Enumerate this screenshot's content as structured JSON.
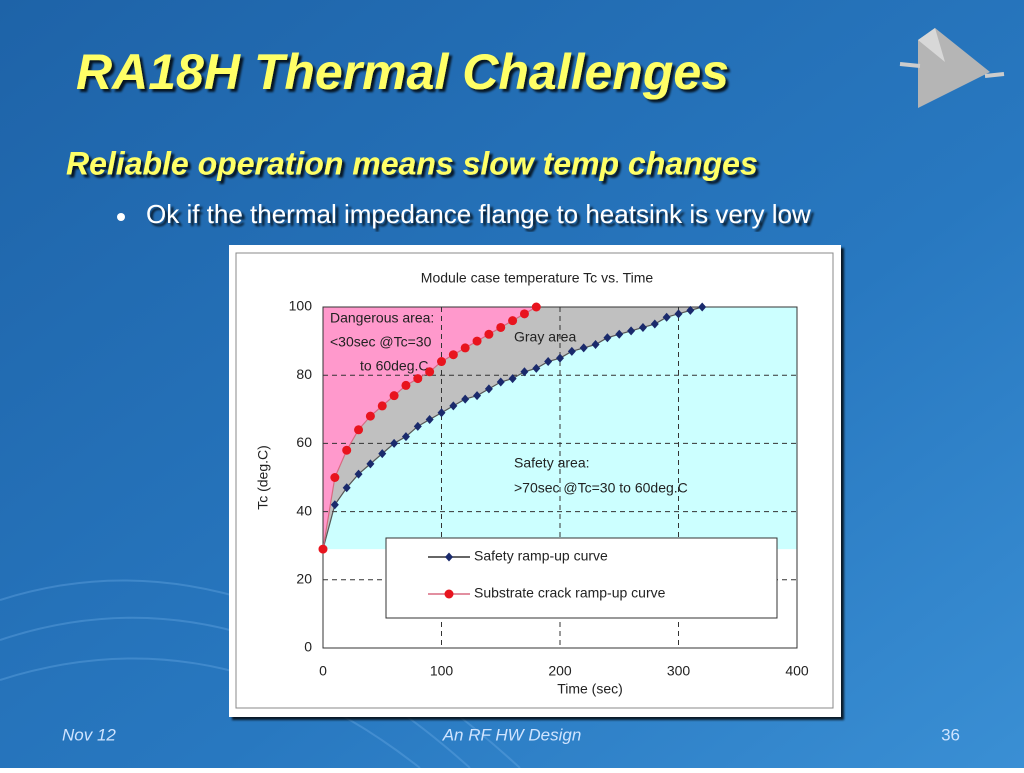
{
  "slide": {
    "title": "RA18H Thermal Challenges",
    "subtitle": "Reliable operation means slow temp changes",
    "bullet": "Ok if the thermal impedance flange to heatsink is very low",
    "footer_left": "Nov 12",
    "footer_center": "An RF HW Design",
    "footer_right": "36"
  },
  "chart_data": {
    "type": "line",
    "title": "Module case temperature Tc vs. Time",
    "x_label": "Time (sec)",
    "y_label": "Tc (deg.C)",
    "xlim": [
      0,
      400
    ],
    "xticks": [
      0,
      100,
      200,
      300,
      400
    ],
    "ylim": [
      0,
      100
    ],
    "yticks": [
      0,
      20,
      40,
      60,
      80,
      100
    ],
    "grid": true,
    "legend": "lower right",
    "annotations": [
      "Dangerous area:",
      "<30sec @Tc=30",
      "to 60deg.C",
      "Gray area",
      "Safety area:",
      ">70sec @Tc=30 to 60deg.C"
    ],
    "series": [
      {
        "name": "Safety ramp-up curve",
        "color": "#1a2a6c",
        "marker": "diamond",
        "x": [
          0,
          10,
          20,
          30,
          40,
          50,
          60,
          70,
          80,
          90,
          100,
          110,
          120,
          130,
          140,
          150,
          160,
          170,
          180,
          190,
          200,
          210,
          220,
          230,
          240,
          250,
          260,
          270,
          280,
          290,
          300,
          310,
          320
        ],
        "values": [
          29,
          42,
          47,
          51,
          54,
          57,
          60,
          62,
          65,
          67,
          69,
          71,
          73,
          74,
          76,
          78,
          79,
          81,
          82,
          84,
          85,
          87,
          88,
          89,
          91,
          92,
          93,
          94,
          95,
          97,
          98,
          99,
          100
        ]
      },
      {
        "name": "Substrate crack ramp-up curve",
        "color": "#e8141e",
        "marker": "circle",
        "x": [
          0,
          10,
          20,
          30,
          40,
          50,
          60,
          70,
          80,
          90,
          100,
          110,
          120,
          130,
          140,
          150,
          160,
          170,
          180
        ],
        "values": [
          29,
          50,
          58,
          64,
          68,
          71,
          74,
          77,
          79,
          81,
          84,
          86,
          88,
          90,
          92,
          94,
          96,
          98,
          100
        ]
      }
    ]
  }
}
